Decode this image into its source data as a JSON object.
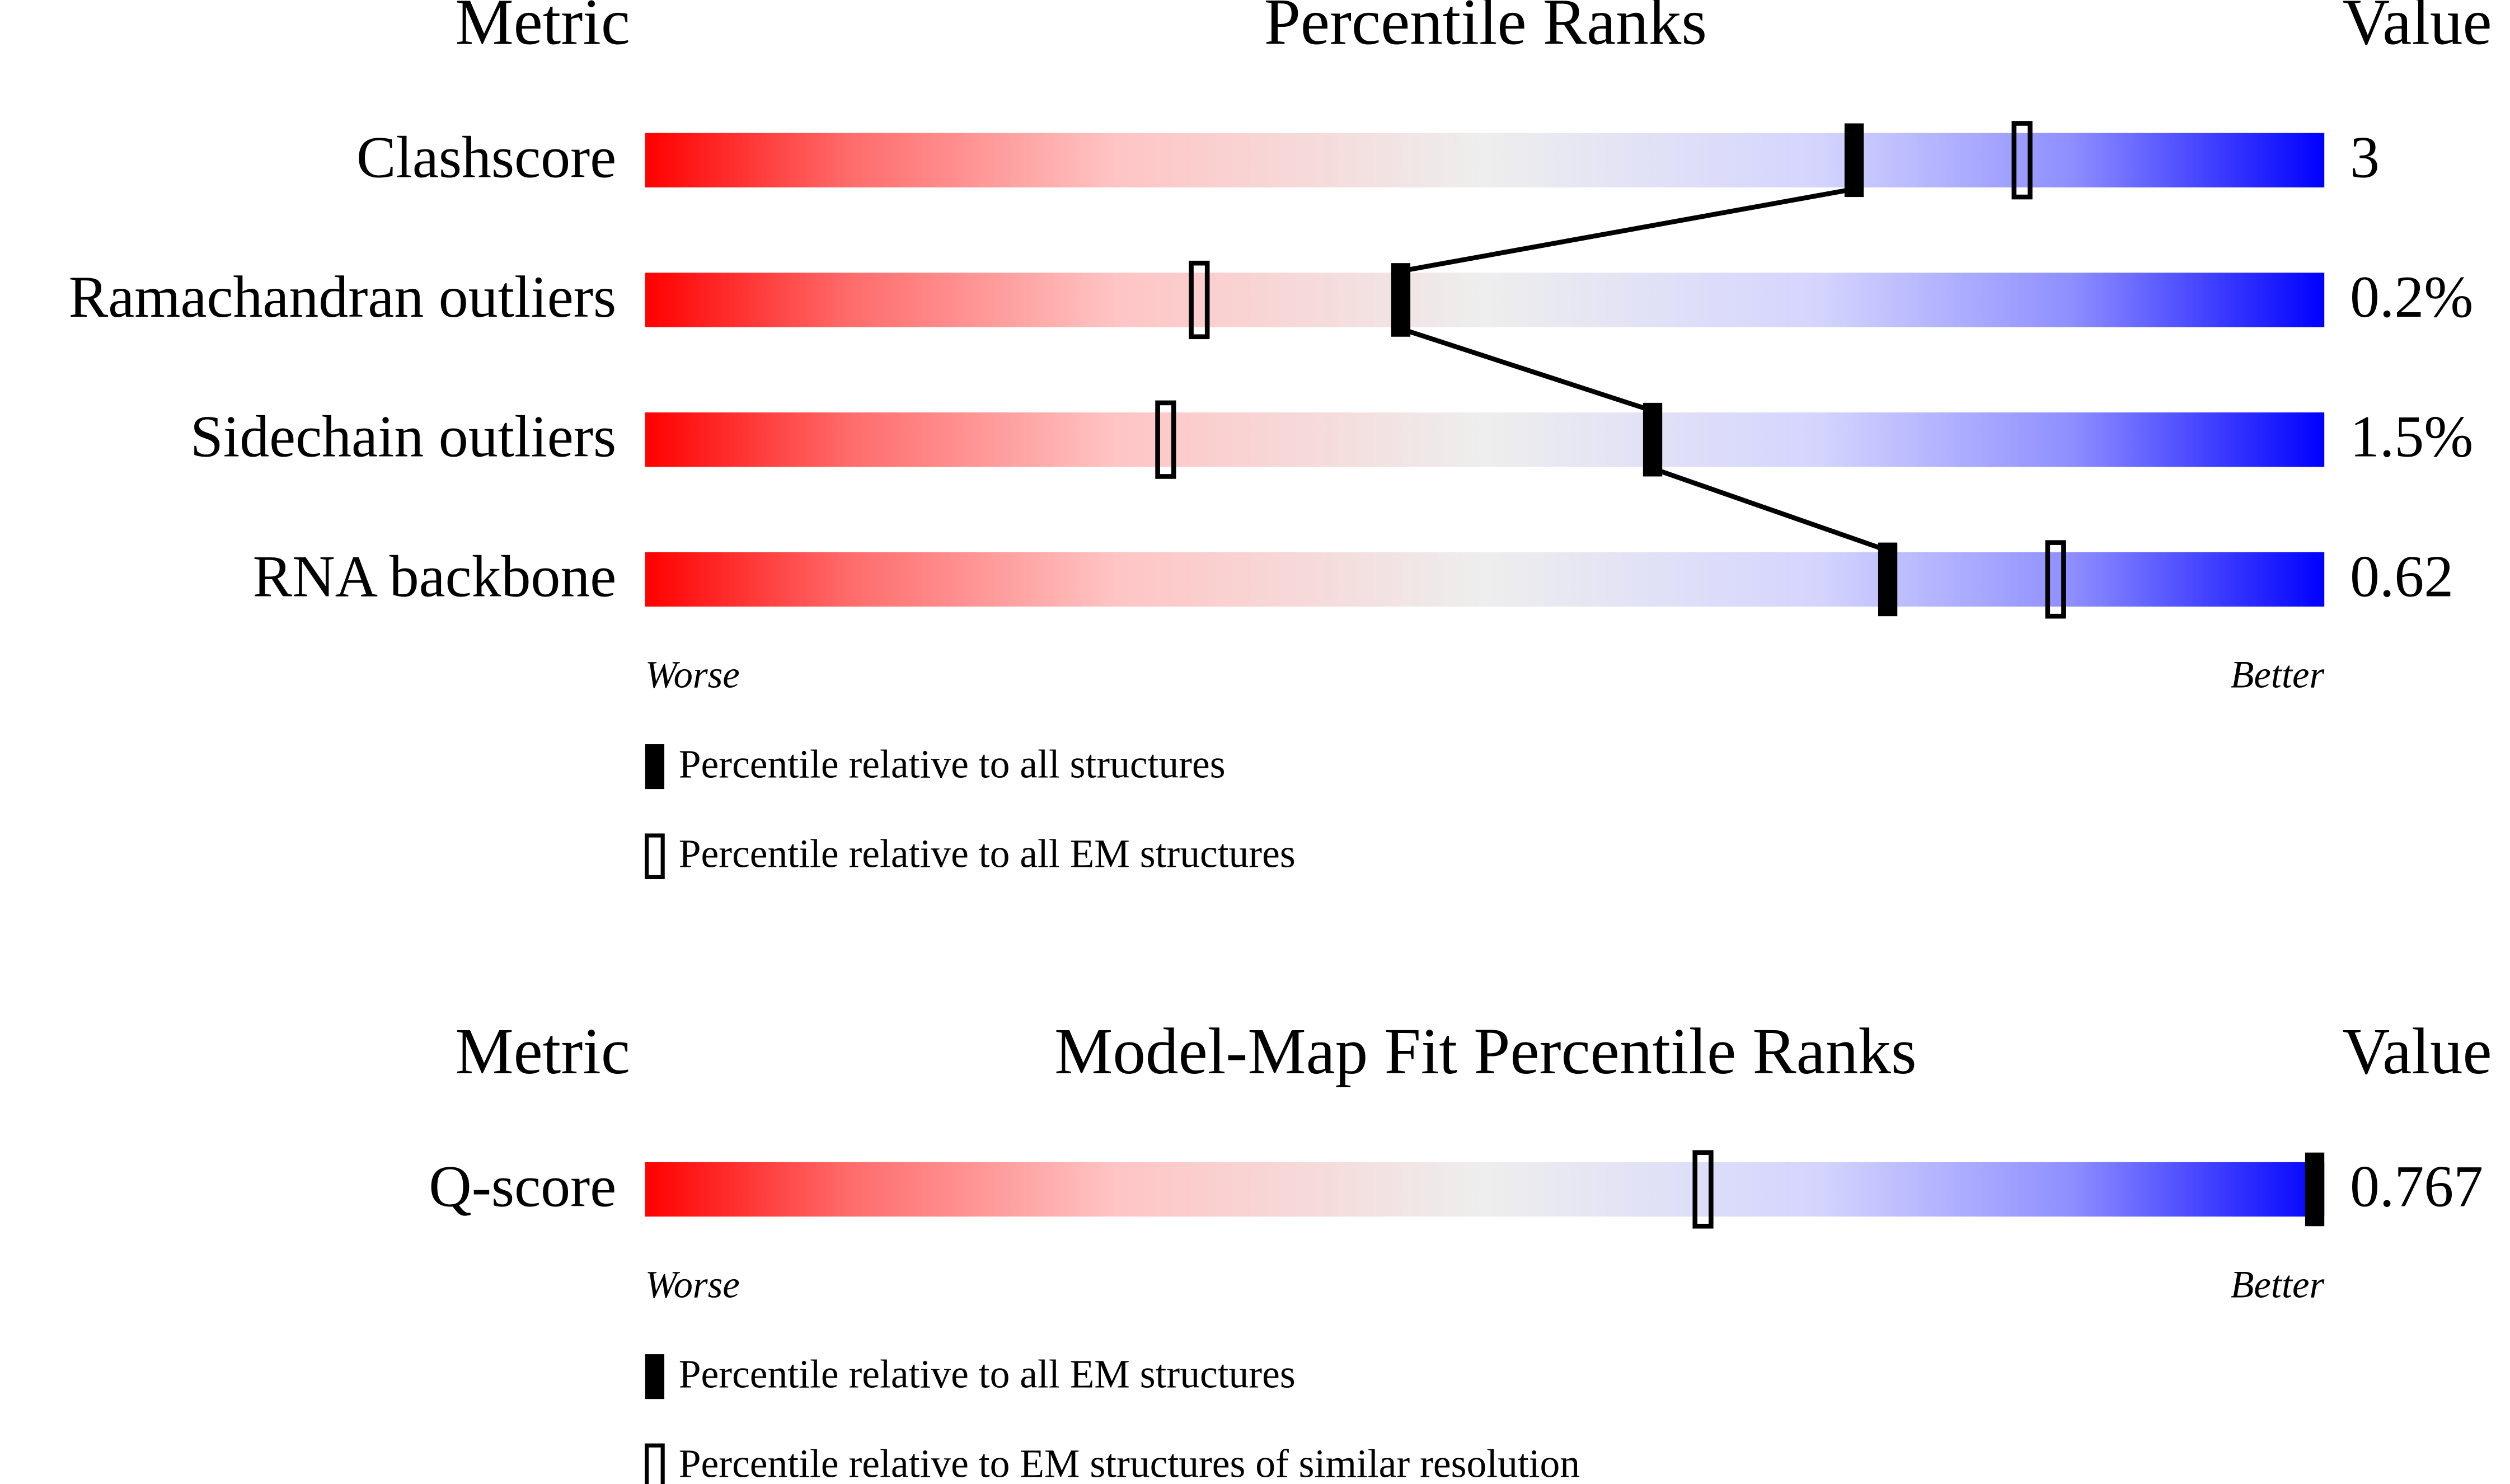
{
  "chart_data": [
    {
      "type": "percentile",
      "metric_header": "Metric",
      "title": "Percentile Ranks",
      "value_header": "Value",
      "categories": [
        "Clashscore",
        "Ramachandran outliers",
        "Sidechain outliers",
        "RNA backbone"
      ],
      "metric_values": [
        "3",
        "0.2%",
        "1.5%",
        "0.62"
      ],
      "series": [
        {
          "name": "Percentile relative to all structures",
          "color": "#000000",
          "filled": true,
          "values": [
            72,
            45,
            60,
            74
          ]
        },
        {
          "name": "Percentile relative to all EM structures",
          "color": "#000000",
          "filled": false,
          "values": [
            82,
            33,
            31,
            84
          ]
        }
      ],
      "worse_label": "Worse",
      "better_label": "Better",
      "xlim": [
        0,
        100
      ],
      "connect_first_series": true
    },
    {
      "type": "percentile",
      "metric_header": "Metric",
      "title": "Model-Map Fit Percentile Ranks",
      "value_header": "Value",
      "categories": [
        "Q-score"
      ],
      "metric_values": [
        "0.767"
      ],
      "series": [
        {
          "name": "Percentile relative to all EM structures",
          "color": "#000000",
          "filled": true,
          "values": [
            100
          ]
        },
        {
          "name": "Percentile relative to EM structures of similar resolution",
          "color": "#000000",
          "filled": false,
          "values": [
            63
          ]
        }
      ],
      "worse_label": "Worse",
      "better_label": "Better",
      "xlim": [
        0,
        100
      ],
      "connect_first_series": false
    }
  ]
}
